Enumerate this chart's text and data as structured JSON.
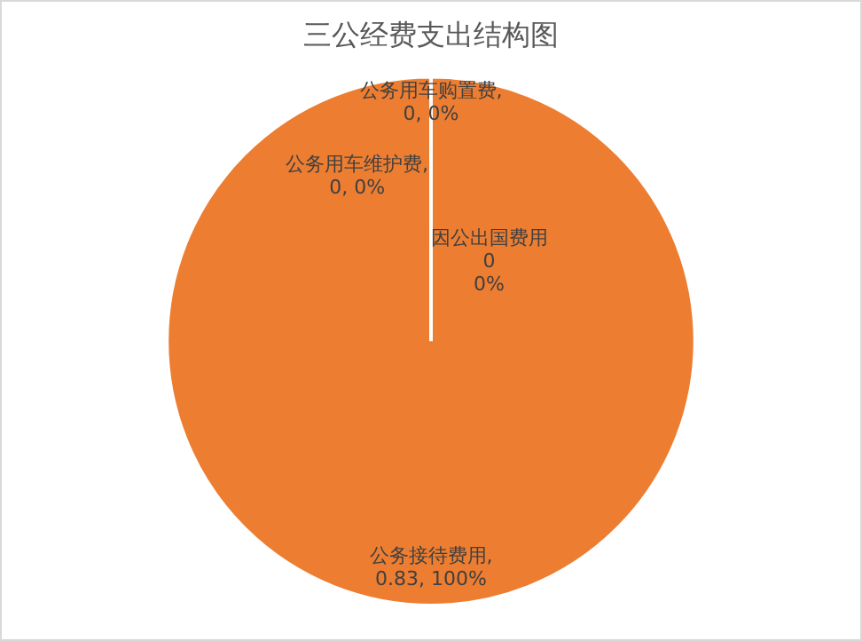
{
  "chart_data": {
    "type": "pie",
    "title": "三公经费支出结构图",
    "categories": [
      "公务用车购置费",
      "公务用车维护费",
      "因公出国费用",
      "公务接待费用"
    ],
    "values": [
      0,
      0,
      0,
      0.83
    ],
    "colors": [
      "#5b9bd5",
      "#a5a5a5",
      "#ffc000",
      "#ed7d31"
    ],
    "value_labels": [
      ",\n0, 0%",
      ",\n0, 0%",
      "\n0\n0%",
      ",\n0.83, 100%"
    ],
    "legend": false
  }
}
